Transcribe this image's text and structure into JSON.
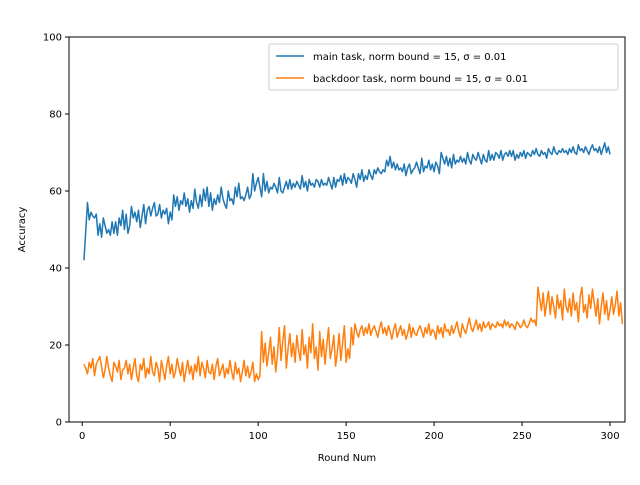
{
  "chart_data": {
    "type": "line",
    "title": "",
    "xlabel": "Round Num",
    "ylabel": "Accuracy",
    "xlim": [
      -7.5,
      308.5
    ],
    "ylim": [
      0,
      100
    ],
    "x_ticks": [
      0,
      50,
      100,
      150,
      200,
      250,
      300
    ],
    "y_ticks": [
      0,
      20,
      40,
      60,
      80,
      100
    ],
    "grid": false,
    "legend_position": "top-right",
    "x_start": 1,
    "x_step": 1,
    "series": [
      {
        "name": "main task, norm bound = 15, σ = 0.01",
        "color": "#1f77b4",
        "values": [
          42.0,
          49.5,
          57.0,
          52.5,
          54.5,
          53.5,
          53.0,
          54.0,
          48.5,
          51.5,
          48.0,
          53.0,
          51.0,
          49.0,
          50.0,
          48.5,
          52.0,
          49.0,
          52.0,
          48.5,
          53.0,
          51.0,
          55.0,
          50.0,
          54.0,
          49.0,
          51.0,
          56.0,
          53.0,
          54.5,
          52.0,
          55.0,
          50.5,
          53.5,
          56.5,
          51.5,
          55.0,
          56.0,
          53.5,
          55.5,
          57.0,
          53.5,
          54.0,
          56.5,
          53.0,
          55.0,
          54.0,
          55.5,
          51.5,
          54.5,
          52.5,
          59.0,
          56.0,
          58.5,
          55.0,
          57.5,
          56.5,
          59.5,
          56.0,
          58.0,
          54.5,
          57.5,
          55.5,
          60.5,
          57.0,
          55.5,
          59.0,
          56.0,
          60.5,
          57.5,
          61.0,
          56.0,
          59.5,
          55.0,
          58.0,
          56.5,
          59.0,
          57.0,
          61.0,
          58.0,
          56.5,
          55.5,
          60.0,
          57.5,
          58.0,
          56.5,
          61.0,
          58.5,
          62.0,
          58.0,
          58.5,
          57.5,
          59.0,
          61.0,
          58.0,
          59.0,
          64.5,
          60.0,
          62.0,
          63.5,
          61.0,
          58.5,
          64.5,
          60.0,
          62.5,
          59.5,
          61.0,
          60.5,
          62.0,
          61.0,
          59.5,
          63.5,
          60.0,
          59.5,
          61.0,
          62.5,
          60.5,
          63.0,
          60.5,
          62.0,
          61.0,
          62.5,
          61.5,
          60.5,
          64.0,
          61.0,
          62.5,
          60.0,
          63.0,
          61.5,
          62.0,
          61.0,
          63.0,
          62.5,
          61.0,
          63.0,
          61.5,
          62.0,
          61.5,
          63.5,
          62.0,
          60.5,
          63.5,
          61.0,
          63.0,
          62.5,
          64.0,
          61.5,
          64.5,
          62.0,
          63.5,
          63.0,
          62.0,
          64.5,
          63.0,
          61.0,
          64.5,
          63.0,
          65.5,
          62.5,
          64.0,
          63.0,
          65.5,
          64.0,
          63.0,
          65.5,
          64.5,
          66.0,
          65.0,
          64.5,
          65.5,
          65.0,
          68.0,
          66.5,
          69.0,
          66.0,
          67.5,
          65.5,
          67.0,
          65.5,
          66.0,
          65.0,
          67.0,
          64.0,
          66.0,
          67.0,
          64.5,
          65.5,
          66.0,
          67.5,
          66.0,
          64.5,
          68.5,
          65.0,
          66.5,
          66.0,
          68.0,
          65.5,
          67.0,
          65.0,
          67.5,
          66.5,
          64.5,
          70.0,
          68.5,
          67.0,
          69.0,
          66.5,
          68.5,
          66.0,
          69.5,
          67.0,
          68.0,
          67.5,
          69.0,
          67.5,
          68.5,
          67.0,
          70.0,
          68.0,
          67.0,
          69.5,
          68.5,
          68.0,
          70.0,
          68.5,
          67.0,
          69.5,
          68.0,
          67.5,
          70.5,
          68.0,
          69.5,
          68.0,
          70.0,
          69.5,
          68.5,
          70.5,
          68.0,
          69.5,
          70.0,
          69.0,
          70.5,
          69.0,
          70.5,
          68.0,
          69.5,
          68.5,
          70.0,
          69.0,
          70.5,
          68.5,
          70.0,
          69.5,
          69.0,
          70.5,
          69.5,
          71.0,
          69.5,
          69.0,
          70.5,
          69.5,
          70.0,
          68.5,
          71.0,
          70.0,
          69.5,
          71.5,
          70.0,
          69.5,
          70.5,
          70.0,
          71.0,
          70.0,
          70.5,
          69.5,
          71.0,
          70.0,
          71.5,
          70.0,
          69.5,
          72.0,
          70.5,
          71.0,
          70.0,
          71.5,
          70.5,
          69.5,
          71.0,
          72.0,
          70.5,
          71.0,
          70.0,
          71.5,
          69.5,
          71.0,
          72.5,
          70.0,
          71.5,
          69.5
        ]
      },
      {
        "name": "backdoor task, norm bound = 15, σ = 0.01",
        "color": "#ff7f0e",
        "values": [
          15.0,
          14.0,
          12.5,
          15.5,
          14.0,
          16.5,
          12.0,
          15.0,
          16.0,
          17.0,
          14.5,
          11.5,
          13.5,
          17.0,
          14.0,
          12.0,
          10.5,
          15.5,
          14.5,
          13.0,
          16.0,
          11.0,
          13.5,
          14.0,
          16.0,
          12.5,
          15.0,
          11.0,
          14.0,
          16.5,
          12.0,
          10.5,
          15.0,
          13.5,
          16.5,
          11.5,
          14.0,
          12.5,
          17.0,
          13.0,
          12.0,
          15.5,
          14.0,
          10.5,
          16.0,
          13.5,
          11.0,
          14.5,
          17.0,
          12.5,
          15.0,
          11.5,
          13.0,
          16.5,
          14.0,
          12.0,
          15.5,
          10.5,
          13.5,
          16.0,
          12.5,
          14.5,
          11.0,
          15.0,
          13.0,
          17.0,
          12.0,
          15.5,
          14.0,
          11.5,
          16.0,
          13.0,
          12.5,
          15.0,
          11.0,
          14.5,
          16.5,
          12.0,
          13.5,
          15.0,
          11.5,
          14.0,
          12.5,
          16.0,
          13.0,
          11.0,
          15.5,
          12.5,
          14.0,
          10.5,
          13.0,
          16.0,
          12.0,
          14.5,
          11.5,
          13.0,
          15.5,
          10.5,
          12.5,
          11.0,
          12.0,
          23.5,
          15.5,
          20.5,
          14.5,
          18.0,
          22.0,
          15.0,
          19.5,
          13.0,
          17.5,
          24.5,
          16.0,
          21.0,
          25.0,
          14.0,
          19.0,
          23.0,
          17.0,
          20.5,
          15.5,
          22.5,
          18.5,
          16.0,
          24.0,
          17.5,
          20.0,
          14.0,
          22.0,
          18.0,
          25.5,
          16.5,
          19.5,
          13.5,
          23.5,
          17.0,
          21.5,
          15.0,
          20.0,
          24.5,
          16.5,
          19.0,
          22.5,
          14.5,
          18.0,
          23.0,
          16.0,
          20.5,
          25.0,
          15.5,
          19.0,
          16.5,
          24.5,
          20.0,
          25.5,
          23.5,
          22.0,
          24.0,
          25.0,
          22.5,
          24.5,
          23.0,
          25.5,
          22.5,
          24.0,
          25.0,
          23.5,
          22.0,
          24.5,
          26.0,
          23.0,
          24.5,
          22.5,
          25.0,
          23.5,
          21.5,
          24.0,
          25.5,
          22.0,
          23.5,
          25.0,
          22.5,
          24.0,
          21.5,
          23.0,
          25.5,
          22.0,
          24.5,
          23.0,
          22.5,
          24.0,
          25.0,
          23.5,
          22.0,
          24.5,
          23.0,
          25.5,
          22.5,
          24.0,
          23.5,
          21.5,
          25.0,
          23.0,
          24.5,
          22.0,
          25.5,
          23.5,
          24.0,
          22.5,
          25.0,
          23.0,
          24.5,
          26.0,
          23.5,
          22.0,
          25.5,
          24.0,
          23.0,
          25.0,
          27.0,
          24.5,
          23.5,
          25.0,
          26.5,
          24.0,
          25.5,
          23.5,
          26.0,
          24.5,
          25.0,
          26.0,
          24.0,
          25.5,
          25.0,
          24.5,
          26.0,
          25.0,
          25.5,
          24.5,
          26.5,
          25.0,
          26.0,
          24.5,
          25.5,
          25.0,
          24.0,
          26.0,
          25.5,
          24.5,
          25.0,
          26.5,
          25.0,
          24.5,
          25.5,
          27.0,
          26.0,
          26.5,
          25.0,
          35.0,
          32.0,
          29.0,
          33.5,
          27.5,
          31.0,
          34.0,
          28.0,
          32.5,
          30.0,
          27.0,
          33.0,
          29.5,
          31.5,
          26.5,
          34.5,
          30.0,
          28.5,
          32.0,
          27.5,
          33.5,
          29.0,
          31.0,
          26.0,
          32.5,
          35.0,
          28.5,
          30.5,
          27.0,
          33.0,
          29.5,
          34.5,
          31.0,
          27.5,
          32.0,
          25.5,
          30.0,
          33.5,
          28.0,
          31.5,
          26.5,
          29.0,
          32.5,
          28.0,
          30.5,
          34.0,
          27.5,
          31.0,
          25.5
        ]
      }
    ]
  }
}
